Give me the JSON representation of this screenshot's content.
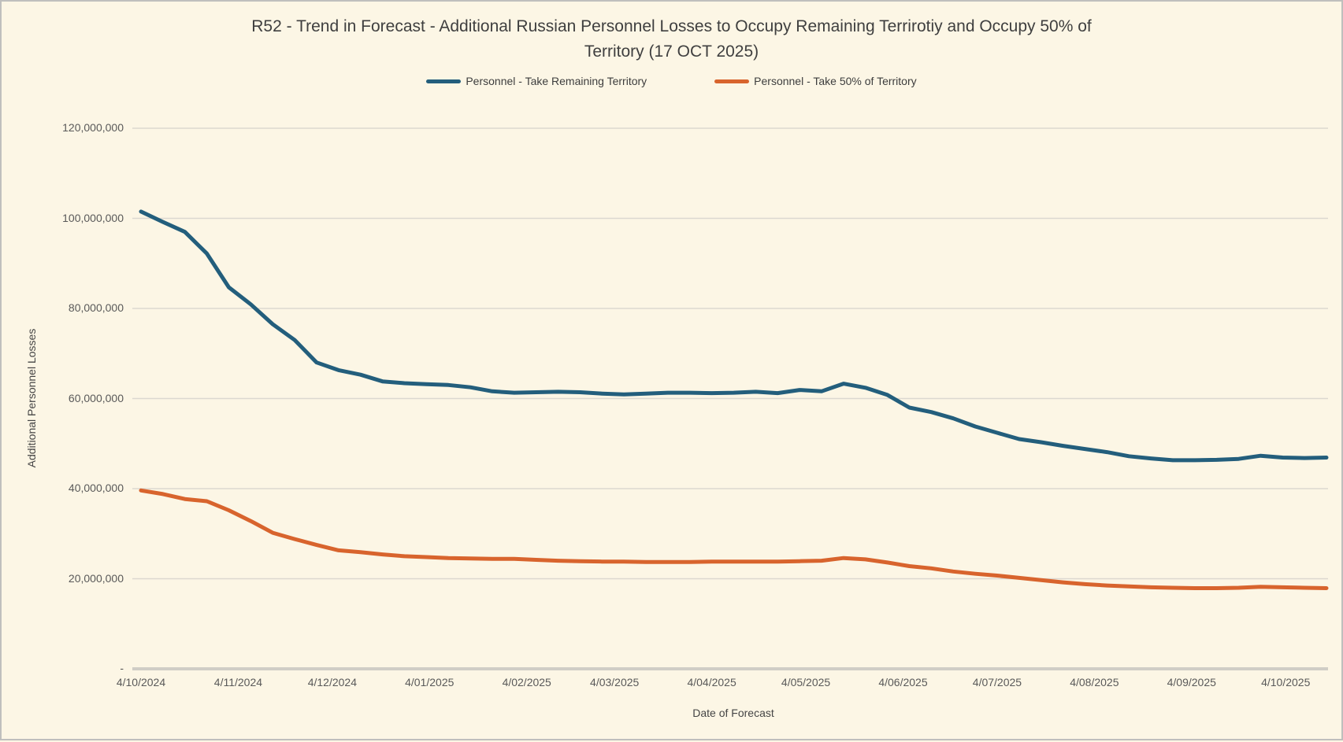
{
  "chart": {
    "background_color": "#FCF6E5",
    "border_color": "#BFBFBD",
    "title_color": "#3F3F3F",
    "tick_label_color": "#595959",
    "gridline_color": "#DCD8D0",
    "axis_line_color": "#D0CDC6"
  },
  "chart_data": {
    "type": "line",
    "title": "R52 - Trend in Forecast - Additional Russian Personnel Losses to Occupy Remaining Terrirotiy and Occupy 50% of Territory  (17 OCT 2025)",
    "xlabel": "Date of Forecast",
    "ylabel": "Additional Personnel Losses",
    "ylim": [
      0,
      120000000
    ],
    "grid": "horizontal",
    "legend_position": "top-center",
    "y_ticks": [
      {
        "label": "120,000,000",
        "value": 120000000
      },
      {
        "label": "100,000,000",
        "value": 100000000
      },
      {
        "label": "80,000,000",
        "value": 80000000
      },
      {
        "label": "60,000,000",
        "value": 60000000
      },
      {
        "label": "40,000,000",
        "value": 40000000
      },
      {
        "label": "20,000,000",
        "value": 20000000
      },
      {
        "label": "-",
        "value": 0
      }
    ],
    "x_span_days": 378,
    "point_interval_days": 7,
    "x_ticks": [
      {
        "label": "4/10/2024",
        "day": 0
      },
      {
        "label": "4/11/2024",
        "day": 31
      },
      {
        "label": "4/12/2024",
        "day": 61
      },
      {
        "label": "4/01/2025",
        "day": 92
      },
      {
        "label": "4/02/2025",
        "day": 123
      },
      {
        "label": "4/03/2025",
        "day": 151
      },
      {
        "label": "4/04/2025",
        "day": 182
      },
      {
        "label": "4/05/2025",
        "day": 212
      },
      {
        "label": "4/06/2025",
        "day": 243
      },
      {
        "label": "4/07/2025",
        "day": 273
      },
      {
        "label": "4/08/2025",
        "day": 304
      },
      {
        "label": "4/09/2025",
        "day": 335
      },
      {
        "label": "4/10/2025",
        "day": 365
      }
    ],
    "x_dates": [
      "4/10/2024",
      "11/10/2024",
      "18/10/2024",
      "25/10/2024",
      "1/11/2024",
      "8/11/2024",
      "15/11/2024",
      "22/11/2024",
      "29/11/2024",
      "6/12/2024",
      "13/12/2024",
      "20/12/2024",
      "27/12/2024",
      "3/01/2025",
      "10/01/2025",
      "17/01/2025",
      "24/01/2025",
      "31/01/2025",
      "7/02/2025",
      "14/02/2025",
      "21/02/2025",
      "28/02/2025",
      "7/03/2025",
      "14/03/2025",
      "21/03/2025",
      "28/03/2025",
      "4/04/2025",
      "11/04/2025",
      "18/04/2025",
      "25/04/2025",
      "2/05/2025",
      "9/05/2025",
      "16/05/2025",
      "23/05/2025",
      "30/05/2025",
      "6/06/2025",
      "13/06/2025",
      "20/06/2025",
      "27/06/2025",
      "4/07/2025",
      "11/07/2025",
      "18/07/2025",
      "25/07/2025",
      "1/08/2025",
      "8/08/2025",
      "15/08/2025",
      "22/08/2025",
      "29/08/2025",
      "5/09/2025",
      "12/09/2025",
      "19/09/2025",
      "26/09/2025",
      "3/10/2025",
      "10/10/2025",
      "17/10/2025"
    ],
    "series": [
      {
        "name": "Personnel - Take Remaining Territory",
        "color": "#235E7C",
        "values": [
          101500000,
          99200000,
          97000000,
          92200000,
          84700000,
          80900000,
          76500000,
          73000000,
          68000000,
          66300000,
          65300000,
          63800000,
          63400000,
          63200000,
          63000000,
          62500000,
          61600000,
          61300000,
          61400000,
          61500000,
          61400000,
          61100000,
          60900000,
          61100000,
          61300000,
          61300000,
          61200000,
          61300000,
          61500000,
          61200000,
          61900000,
          61600000,
          63300000,
          62400000,
          60800000,
          58000000,
          57000000,
          55600000,
          53800000,
          52400000,
          51000000,
          50300000,
          49500000,
          48800000,
          48100000,
          47200000,
          46700000,
          46300000,
          46300000,
          46400000,
          46600000,
          47300000,
          46900000,
          46800000,
          46900000
        ]
      },
      {
        "name": "Personnel - Take 50% of Territory",
        "color": "#D8642D",
        "values": [
          39600000,
          38800000,
          37700000,
          37200000,
          35200000,
          32800000,
          30200000,
          28800000,
          27500000,
          26300000,
          25900000,
          25400000,
          25000000,
          24800000,
          24600000,
          24500000,
          24400000,
          24400000,
          24200000,
          24000000,
          23900000,
          23800000,
          23800000,
          23700000,
          23700000,
          23700000,
          23800000,
          23800000,
          23800000,
          23800000,
          23900000,
          24000000,
          24600000,
          24300000,
          23600000,
          22800000,
          22300000,
          21600000,
          21100000,
          20700000,
          20200000,
          19700000,
          19200000,
          18800000,
          18500000,
          18300000,
          18100000,
          18000000,
          17900000,
          17900000,
          18000000,
          18200000,
          18100000,
          18000000,
          17900000
        ]
      }
    ]
  }
}
